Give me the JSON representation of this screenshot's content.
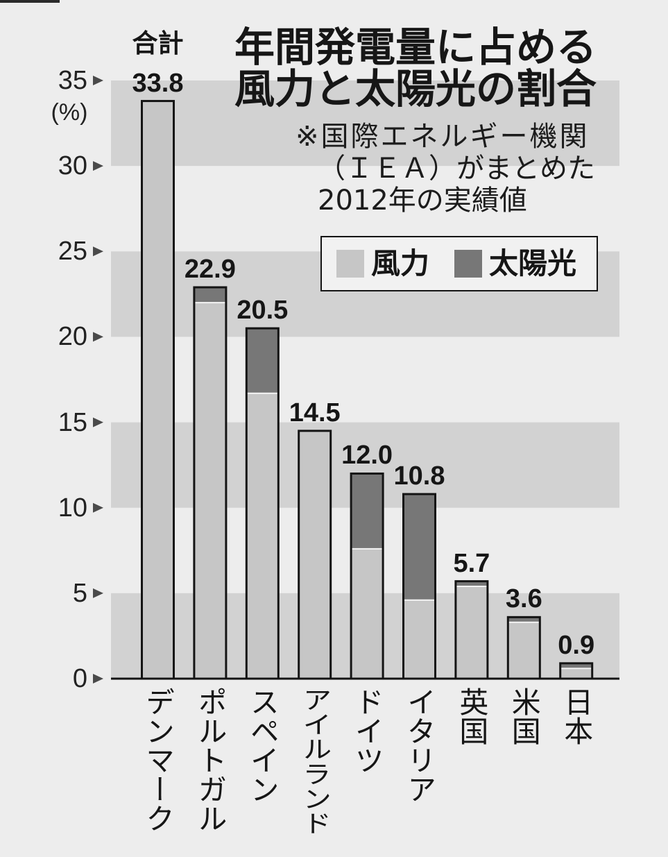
{
  "chart_data": {
    "type": "bar",
    "stacked": true,
    "title": [
      "年間発電量に占める",
      "風力と太陽光の割合"
    ],
    "note": [
      "※国際エネルギー機関",
      "（ＩＥＡ）がまとめた",
      "2012年の実績値"
    ],
    "total_label": "合計",
    "ylabel": "(%)",
    "ylim": [
      0,
      35
    ],
    "yticks": [
      0,
      5,
      10,
      15,
      20,
      25,
      30,
      35
    ],
    "categories": [
      "デンマーク",
      "ポルトガル",
      "スペイン",
      "アイルランド",
      "ドイツ",
      "イタリア",
      "英国",
      "米国",
      "日本"
    ],
    "series": [
      {
        "name": "風力",
        "color": "#c6c6c6",
        "values": [
          33.8,
          22.0,
          16.7,
          14.5,
          7.6,
          4.6,
          5.4,
          3.3,
          0.6
        ]
      },
      {
        "name": "太陽光",
        "color": "#777777",
        "values": [
          0,
          0.9,
          3.8,
          0,
          4.4,
          6.2,
          0.3,
          0.3,
          0.3
        ]
      }
    ],
    "totals": [
      33.8,
      22.9,
      20.5,
      14.5,
      12.0,
      10.8,
      5.7,
      3.6,
      0.9
    ],
    "legend_position": "top-right",
    "grid": true,
    "band_color": "#d2d2d2",
    "background_color": "#ededed"
  }
}
